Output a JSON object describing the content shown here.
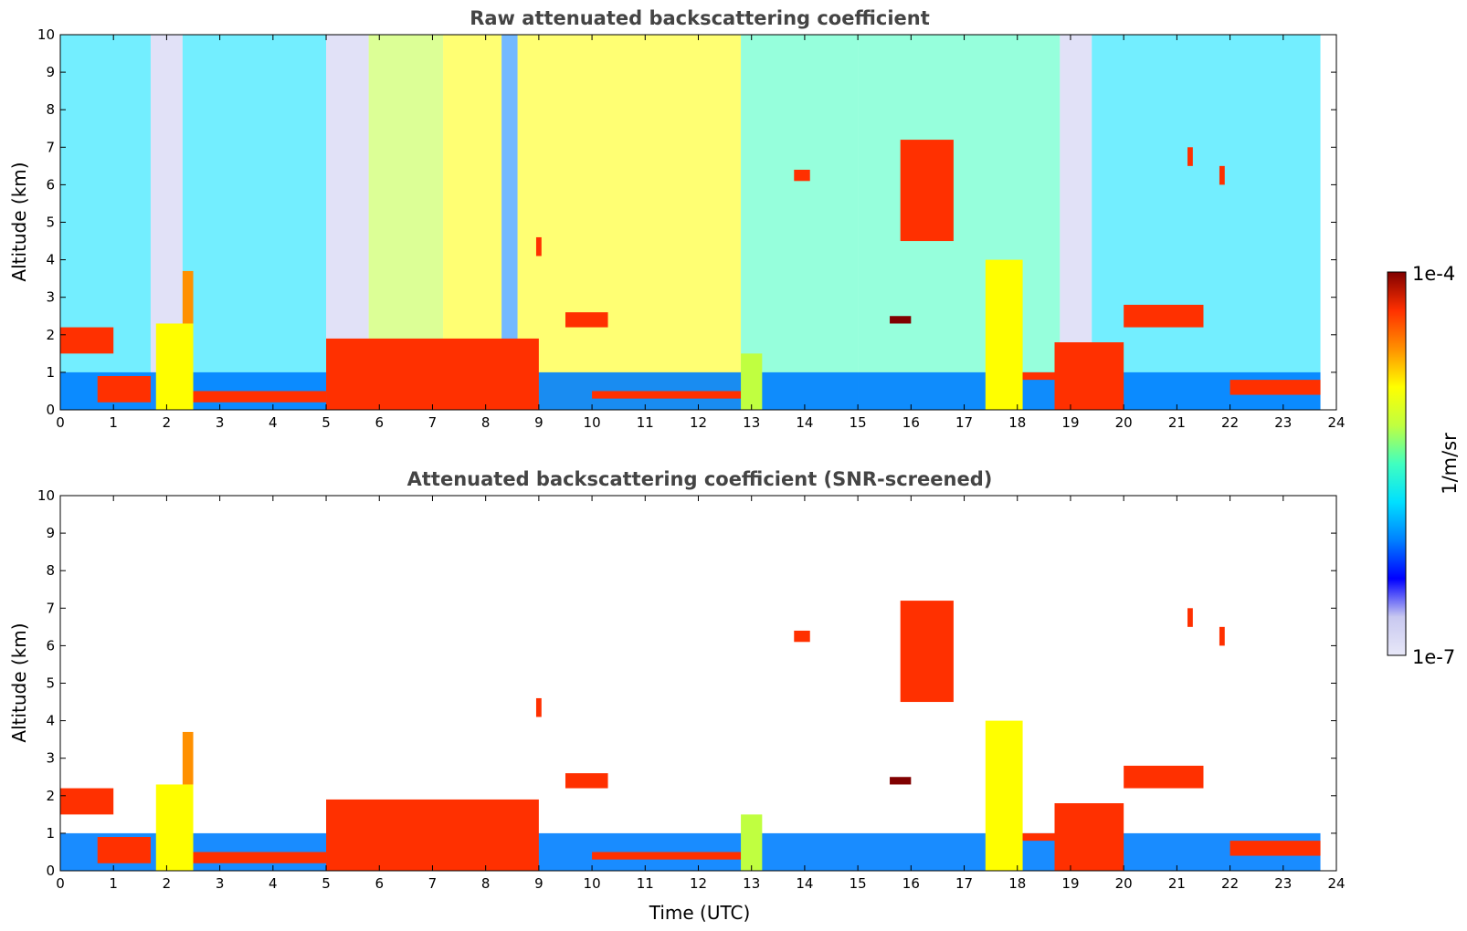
{
  "colors": {
    "jet": [
      "#e8e8f8",
      "#c8c8f0",
      "#0000ff",
      "#0080ff",
      "#00e0ff",
      "#40ffc0",
      "#c0ff40",
      "#ffff00",
      "#ff9000",
      "#ff3000",
      "#800000"
    ],
    "low_white": "#e8e8f8",
    "text_title": "#444444"
  },
  "chart_data": [
    {
      "type": "heatmap",
      "title": "Raw attenuated backscattering coefficient",
      "xlabel": "",
      "ylabel": "Altitude (km)",
      "xlim": [
        0,
        24
      ],
      "ylim": [
        0,
        10
      ],
      "xticks": [
        0,
        1,
        2,
        3,
        4,
        5,
        6,
        7,
        8,
        9,
        10,
        11,
        12,
        13,
        14,
        15,
        16,
        17,
        18,
        19,
        20,
        21,
        22,
        23,
        24
      ],
      "yticks": [
        0,
        1,
        2,
        3,
        4,
        5,
        6,
        7,
        8,
        9,
        10
      ],
      "grid": false,
      "background_regions": [
        {
          "x": [
            0,
            1.7
          ],
          "level": 0.42
        },
        {
          "x": [
            1.7,
            2.3
          ],
          "level": 0.05
        },
        {
          "x": [
            2.3,
            5.0
          ],
          "level": 0.4
        },
        {
          "x": [
            5.0,
            5.8
          ],
          "level": 0.08
        },
        {
          "x": [
            5.8,
            7.2
          ],
          "level": 0.55
        },
        {
          "x": [
            7.2,
            8.3
          ],
          "level": 0.68
        },
        {
          "x": [
            8.3,
            8.6
          ],
          "level": 0.25
        },
        {
          "x": [
            8.6,
            12.8
          ],
          "level": 0.7
        },
        {
          "x": [
            12.8,
            15.0
          ],
          "level": 0.52
        },
        {
          "x": [
            15.0,
            18.8
          ],
          "level": 0.45
        },
        {
          "x": [
            18.8,
            19.4
          ],
          "level": 0.06
        },
        {
          "x": [
            19.4,
            23.7
          ],
          "level": 0.42
        }
      ],
      "layers": [
        {
          "x": [
            0,
            1.0
          ],
          "y": [
            1.5,
            2.2
          ],
          "level": 0.9
        },
        {
          "x": [
            0.7,
            1.7
          ],
          "y": [
            0.2,
            0.9
          ],
          "level": 0.85
        },
        {
          "x": [
            1.8,
            2.5
          ],
          "y": [
            0,
            2.3
          ],
          "level": 0.7
        },
        {
          "x": [
            2.3,
            2.5
          ],
          "y": [
            2.3,
            3.7
          ],
          "level": 0.75
        },
        {
          "x": [
            2.5,
            5.0
          ],
          "y": [
            0.2,
            0.5
          ],
          "level": 0.9
        },
        {
          "x": [
            5.0,
            9.0
          ],
          "y": [
            0,
            1.9
          ],
          "level": 0.85
        },
        {
          "x": [
            8.95,
            9.05
          ],
          "y": [
            4.1,
            4.6
          ],
          "level": 0.85
        },
        {
          "x": [
            9.5,
            10.3
          ],
          "y": [
            2.2,
            2.6
          ],
          "level": 0.9
        },
        {
          "x": [
            10.0,
            12.8
          ],
          "y": [
            0.3,
            0.5
          ],
          "level": 0.88
        },
        {
          "x": [
            12.8,
            13.2
          ],
          "y": [
            0,
            1.5
          ],
          "level": 0.6
        },
        {
          "x": [
            13.8,
            14.1
          ],
          "y": [
            6.1,
            6.4
          ],
          "level": 0.85
        },
        {
          "x": [
            15.6,
            16.0
          ],
          "y": [
            2.3,
            2.5
          ],
          "level": 0.95
        },
        {
          "x": [
            15.8,
            16.8
          ],
          "y": [
            4.5,
            7.2
          ],
          "level": 0.85
        },
        {
          "x": [
            17.4,
            18.1
          ],
          "y": [
            0,
            4.0
          ],
          "level": 0.7
        },
        {
          "x": [
            18.1,
            18.7
          ],
          "y": [
            0.8,
            1.0
          ],
          "level": 0.9
        },
        {
          "x": [
            18.7,
            20.0
          ],
          "y": [
            0,
            1.8
          ],
          "level": 0.85
        },
        {
          "x": [
            20.0,
            21.5
          ],
          "y": [
            2.2,
            2.8
          ],
          "level": 0.85
        },
        {
          "x": [
            21.2,
            21.3
          ],
          "y": [
            6.5,
            7.0
          ],
          "level": 0.85
        },
        {
          "x": [
            21.8,
            21.9
          ],
          "y": [
            6.0,
            6.5
          ],
          "level": 0.85
        },
        {
          "x": [
            22.0,
            23.7
          ],
          "y": [
            0.4,
            0.8
          ],
          "level": 0.9
        }
      ],
      "low_layer": {
        "y": [
          0,
          1.0
        ],
        "level": 0.25
      }
    },
    {
      "type": "heatmap",
      "title": "Attenuated backscattering coefficient (SNR-screened)",
      "xlabel": "Time (UTC)",
      "ylabel": "Altitude (km)",
      "xlim": [
        0,
        24
      ],
      "ylim": [
        0,
        10
      ],
      "xticks": [
        0,
        1,
        2,
        3,
        4,
        5,
        6,
        7,
        8,
        9,
        10,
        11,
        12,
        13,
        14,
        15,
        16,
        17,
        18,
        19,
        20,
        21,
        22,
        23,
        24
      ],
      "yticks": [
        0,
        1,
        2,
        3,
        4,
        5,
        6,
        7,
        8,
        9,
        10
      ],
      "grid": false,
      "background": "screened (white)",
      "layers": [
        {
          "x": [
            0,
            1.0
          ],
          "y": [
            1.5,
            2.2
          ],
          "level": 0.9
        },
        {
          "x": [
            0.7,
            1.7
          ],
          "y": [
            0.2,
            0.9
          ],
          "level": 0.85
        },
        {
          "x": [
            1.8,
            2.5
          ],
          "y": [
            0,
            2.3
          ],
          "level": 0.7
        },
        {
          "x": [
            2.3,
            2.5
          ],
          "y": [
            2.3,
            3.7
          ],
          "level": 0.75
        },
        {
          "x": [
            2.5,
            5.0
          ],
          "y": [
            0.2,
            0.5
          ],
          "level": 0.9
        },
        {
          "x": [
            5.0,
            9.0
          ],
          "y": [
            0,
            1.9
          ],
          "level": 0.85
        },
        {
          "x": [
            8.95,
            9.05
          ],
          "y": [
            4.1,
            4.6
          ],
          "level": 0.85
        },
        {
          "x": [
            9.5,
            10.3
          ],
          "y": [
            2.2,
            2.6
          ],
          "level": 0.9
        },
        {
          "x": [
            10.0,
            12.8
          ],
          "y": [
            0.3,
            0.5
          ],
          "level": 0.88
        },
        {
          "x": [
            12.8,
            13.2
          ],
          "y": [
            0,
            1.5
          ],
          "level": 0.6
        },
        {
          "x": [
            13.8,
            14.1
          ],
          "y": [
            6.1,
            6.4
          ],
          "level": 0.85
        },
        {
          "x": [
            15.6,
            16.0
          ],
          "y": [
            2.3,
            2.5
          ],
          "level": 0.95
        },
        {
          "x": [
            15.8,
            16.8
          ],
          "y": [
            4.5,
            7.2
          ],
          "level": 0.85
        },
        {
          "x": [
            17.4,
            18.1
          ],
          "y": [
            0,
            4.0
          ],
          "level": 0.7
        },
        {
          "x": [
            18.1,
            18.7
          ],
          "y": [
            0.8,
            1.0
          ],
          "level": 0.9
        },
        {
          "x": [
            18.7,
            20.0
          ],
          "y": [
            0,
            1.8
          ],
          "level": 0.85
        },
        {
          "x": [
            20.0,
            21.5
          ],
          "y": [
            2.2,
            2.8
          ],
          "level": 0.85
        },
        {
          "x": [
            21.2,
            21.3
          ],
          "y": [
            6.5,
            7.0
          ],
          "level": 0.85
        },
        {
          "x": [
            21.8,
            21.9
          ],
          "y": [
            6.0,
            6.5
          ],
          "level": 0.85
        },
        {
          "x": [
            22.0,
            23.7
          ],
          "y": [
            0.4,
            0.8
          ],
          "level": 0.9
        }
      ],
      "low_layer": {
        "y": [
          0,
          1.0
        ],
        "level": 0.25
      }
    }
  ],
  "colorbar": {
    "label": "1/m/sr",
    "max_label": "1e-4",
    "min_label": "1e-7",
    "scale": "log",
    "range": [
      1e-07,
      0.0001
    ]
  }
}
